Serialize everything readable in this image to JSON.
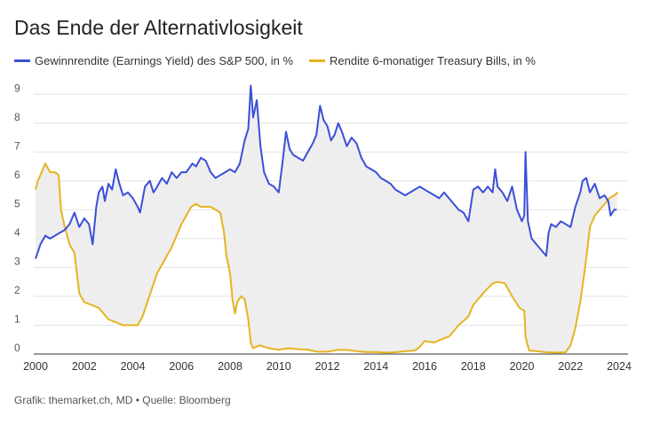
{
  "chart_data": {
    "type": "line",
    "title": "Das Ende der Alternativlosigkeit",
    "xlabel": "",
    "ylabel": "",
    "xlim": [
      2000,
      2024
    ],
    "ylim": [
      0,
      9.5
    ],
    "x_ticks": [
      "2000",
      "2002",
      "2004",
      "2006",
      "2008",
      "2010",
      "2012",
      "2014",
      "2016",
      "2018",
      "2020",
      "2022",
      "2024"
    ],
    "y_ticks": [
      "0",
      "1",
      "2",
      "3",
      "4",
      "5",
      "6",
      "7",
      "8",
      "9"
    ],
    "grid": "horizontal",
    "legend_position": "top-left",
    "fill_between": true,
    "series": [
      {
        "name": "Gewinnrendite (Earnings Yield) des S&P 500, in %",
        "color": "#3b4fd8",
        "points": [
          [
            2000.0,
            3.3
          ],
          [
            2000.2,
            3.8
          ],
          [
            2000.4,
            4.1
          ],
          [
            2000.6,
            4.0
          ],
          [
            2000.8,
            4.1
          ],
          [
            2001.0,
            4.2
          ],
          [
            2001.2,
            4.3
          ],
          [
            2001.4,
            4.5
          ],
          [
            2001.6,
            4.9
          ],
          [
            2001.8,
            4.4
          ],
          [
            2002.0,
            4.7
          ],
          [
            2002.2,
            4.5
          ],
          [
            2002.35,
            3.8
          ],
          [
            2002.5,
            5.1
          ],
          [
            2002.6,
            5.6
          ],
          [
            2002.75,
            5.8
          ],
          [
            2002.85,
            5.3
          ],
          [
            2003.0,
            5.9
          ],
          [
            2003.15,
            5.7
          ],
          [
            2003.3,
            6.4
          ],
          [
            2003.45,
            5.9
          ],
          [
            2003.6,
            5.5
          ],
          [
            2003.8,
            5.6
          ],
          [
            2004.0,
            5.4
          ],
          [
            2004.2,
            5.1
          ],
          [
            2004.3,
            4.9
          ],
          [
            2004.5,
            5.8
          ],
          [
            2004.7,
            6.0
          ],
          [
            2004.85,
            5.6
          ],
          [
            2005.0,
            5.8
          ],
          [
            2005.2,
            6.1
          ],
          [
            2005.4,
            5.9
          ],
          [
            2005.6,
            6.3
          ],
          [
            2005.8,
            6.1
          ],
          [
            2006.0,
            6.3
          ],
          [
            2006.2,
            6.3
          ],
          [
            2006.45,
            6.6
          ],
          [
            2006.6,
            6.5
          ],
          [
            2006.8,
            6.8
          ],
          [
            2007.0,
            6.7
          ],
          [
            2007.2,
            6.3
          ],
          [
            2007.4,
            6.1
          ],
          [
            2007.6,
            6.2
          ],
          [
            2007.8,
            6.3
          ],
          [
            2008.0,
            6.4
          ],
          [
            2008.2,
            6.3
          ],
          [
            2008.4,
            6.6
          ],
          [
            2008.6,
            7.4
          ],
          [
            2008.75,
            7.8
          ],
          [
            2008.85,
            9.3
          ],
          [
            2008.95,
            8.2
          ],
          [
            2009.1,
            8.8
          ],
          [
            2009.25,
            7.2
          ],
          [
            2009.4,
            6.3
          ],
          [
            2009.6,
            5.9
          ],
          [
            2009.8,
            5.8
          ],
          [
            2010.0,
            5.6
          ],
          [
            2010.15,
            6.6
          ],
          [
            2010.3,
            7.7
          ],
          [
            2010.45,
            7.1
          ],
          [
            2010.6,
            6.9
          ],
          [
            2010.8,
            6.8
          ],
          [
            2011.0,
            6.7
          ],
          [
            2011.2,
            7.0
          ],
          [
            2011.4,
            7.3
          ],
          [
            2011.55,
            7.6
          ],
          [
            2011.7,
            8.6
          ],
          [
            2011.85,
            8.1
          ],
          [
            2012.0,
            7.9
          ],
          [
            2012.15,
            7.4
          ],
          [
            2012.3,
            7.6
          ],
          [
            2012.45,
            8.0
          ],
          [
            2012.6,
            7.7
          ],
          [
            2012.8,
            7.2
          ],
          [
            2013.0,
            7.5
          ],
          [
            2013.2,
            7.3
          ],
          [
            2013.4,
            6.8
          ],
          [
            2013.6,
            6.5
          ],
          [
            2013.8,
            6.4
          ],
          [
            2014.0,
            6.3
          ],
          [
            2014.2,
            6.1
          ],
          [
            2014.4,
            6.0
          ],
          [
            2014.6,
            5.9
          ],
          [
            2014.8,
            5.7
          ],
          [
            2015.0,
            5.6
          ],
          [
            2015.2,
            5.5
          ],
          [
            2015.4,
            5.6
          ],
          [
            2015.6,
            5.7
          ],
          [
            2015.8,
            5.8
          ],
          [
            2016.0,
            5.7
          ],
          [
            2016.2,
            5.6
          ],
          [
            2016.4,
            5.5
          ],
          [
            2016.6,
            5.4
          ],
          [
            2016.8,
            5.6
          ],
          [
            2017.0,
            5.4
          ],
          [
            2017.2,
            5.2
          ],
          [
            2017.4,
            5.0
          ],
          [
            2017.6,
            4.9
          ],
          [
            2017.8,
            4.6
          ],
          [
            2018.0,
            5.7
          ],
          [
            2018.2,
            5.8
          ],
          [
            2018.4,
            5.6
          ],
          [
            2018.6,
            5.8
          ],
          [
            2018.8,
            5.6
          ],
          [
            2018.9,
            6.4
          ],
          [
            2019.0,
            5.8
          ],
          [
            2019.2,
            5.6
          ],
          [
            2019.4,
            5.3
          ],
          [
            2019.6,
            5.8
          ],
          [
            2019.8,
            5.0
          ],
          [
            2020.0,
            4.6
          ],
          [
            2020.1,
            4.8
          ],
          [
            2020.15,
            7.0
          ],
          [
            2020.25,
            4.6
          ],
          [
            2020.4,
            4.0
          ],
          [
            2020.6,
            3.8
          ],
          [
            2020.8,
            3.6
          ],
          [
            2021.0,
            3.4
          ],
          [
            2021.1,
            4.2
          ],
          [
            2021.2,
            4.5
          ],
          [
            2021.4,
            4.4
          ],
          [
            2021.6,
            4.6
          ],
          [
            2021.8,
            4.5
          ],
          [
            2022.0,
            4.4
          ],
          [
            2022.2,
            5.1
          ],
          [
            2022.4,
            5.6
          ],
          [
            2022.5,
            6.0
          ],
          [
            2022.65,
            6.1
          ],
          [
            2022.8,
            5.6
          ],
          [
            2023.0,
            5.9
          ],
          [
            2023.2,
            5.4
          ],
          [
            2023.4,
            5.5
          ],
          [
            2023.55,
            5.3
          ],
          [
            2023.65,
            4.8
          ],
          [
            2023.8,
            5.0
          ],
          [
            2023.9,
            5.0
          ]
        ]
      },
      {
        "name": "Rendite 6-monatiger Treasury Bills, in %",
        "color": "#e6b422",
        "points": [
          [
            2000.0,
            5.7
          ],
          [
            2000.1,
            6.0
          ],
          [
            2000.2,
            6.2
          ],
          [
            2000.4,
            6.6
          ],
          [
            2000.6,
            6.3
          ],
          [
            2000.8,
            6.3
          ],
          [
            2000.95,
            6.2
          ],
          [
            2001.05,
            5.0
          ],
          [
            2001.2,
            4.4
          ],
          [
            2001.4,
            3.8
          ],
          [
            2001.6,
            3.5
          ],
          [
            2001.8,
            2.1
          ],
          [
            2002.0,
            1.8
          ],
          [
            2002.3,
            1.7
          ],
          [
            2002.6,
            1.6
          ],
          [
            2002.8,
            1.4
          ],
          [
            2003.0,
            1.2
          ],
          [
            2003.3,
            1.1
          ],
          [
            2003.6,
            1.0
          ],
          [
            2003.8,
            1.0
          ],
          [
            2004.0,
            1.0
          ],
          [
            2004.2,
            1.0
          ],
          [
            2004.4,
            1.3
          ],
          [
            2004.6,
            1.8
          ],
          [
            2004.8,
            2.3
          ],
          [
            2005.0,
            2.8
          ],
          [
            2005.2,
            3.1
          ],
          [
            2005.4,
            3.4
          ],
          [
            2005.6,
            3.7
          ],
          [
            2005.8,
            4.1
          ],
          [
            2006.0,
            4.5
          ],
          [
            2006.2,
            4.8
          ],
          [
            2006.4,
            5.1
          ],
          [
            2006.6,
            5.2
          ],
          [
            2006.8,
            5.1
          ],
          [
            2007.0,
            5.1
          ],
          [
            2007.2,
            5.1
          ],
          [
            2007.4,
            5.0
          ],
          [
            2007.6,
            4.9
          ],
          [
            2007.75,
            4.2
          ],
          [
            2007.85,
            3.4
          ],
          [
            2008.0,
            2.8
          ],
          [
            2008.1,
            1.9
          ],
          [
            2008.2,
            1.4
          ],
          [
            2008.3,
            1.8
          ],
          [
            2008.45,
            2.0
          ],
          [
            2008.6,
            1.9
          ],
          [
            2008.75,
            1.2
          ],
          [
            2008.85,
            0.4
          ],
          [
            2008.95,
            0.2
          ],
          [
            2009.2,
            0.3
          ],
          [
            2009.6,
            0.2
          ],
          [
            2010.0,
            0.15
          ],
          [
            2010.4,
            0.2
          ],
          [
            2010.8,
            0.17
          ],
          [
            2011.2,
            0.15
          ],
          [
            2011.6,
            0.08
          ],
          [
            2012.0,
            0.08
          ],
          [
            2012.4,
            0.14
          ],
          [
            2012.8,
            0.14
          ],
          [
            2013.2,
            0.1
          ],
          [
            2013.6,
            0.07
          ],
          [
            2014.0,
            0.07
          ],
          [
            2014.4,
            0.05
          ],
          [
            2014.8,
            0.06
          ],
          [
            2015.2,
            0.1
          ],
          [
            2015.6,
            0.12
          ],
          [
            2015.8,
            0.25
          ],
          [
            2016.0,
            0.45
          ],
          [
            2016.4,
            0.4
          ],
          [
            2016.8,
            0.55
          ],
          [
            2017.0,
            0.6
          ],
          [
            2017.4,
            1.0
          ],
          [
            2017.8,
            1.3
          ],
          [
            2018.0,
            1.7
          ],
          [
            2018.4,
            2.1
          ],
          [
            2018.8,
            2.45
          ],
          [
            2019.0,
            2.5
          ],
          [
            2019.3,
            2.45
          ],
          [
            2019.6,
            2.0
          ],
          [
            2019.9,
            1.6
          ],
          [
            2020.1,
            1.5
          ],
          [
            2020.15,
            0.6
          ],
          [
            2020.3,
            0.12
          ],
          [
            2020.6,
            0.1
          ],
          [
            2021.0,
            0.06
          ],
          [
            2021.4,
            0.05
          ],
          [
            2021.8,
            0.06
          ],
          [
            2022.0,
            0.3
          ],
          [
            2022.2,
            0.9
          ],
          [
            2022.4,
            1.8
          ],
          [
            2022.6,
            3.0
          ],
          [
            2022.8,
            4.4
          ],
          [
            2023.0,
            4.8
          ],
          [
            2023.2,
            5.0
          ],
          [
            2023.4,
            5.2
          ],
          [
            2023.6,
            5.4
          ],
          [
            2023.8,
            5.5
          ],
          [
            2023.95,
            5.6
          ]
        ]
      }
    ]
  },
  "footer": "Grafik: themarket.ch, MD • Quelle: Bloomberg"
}
